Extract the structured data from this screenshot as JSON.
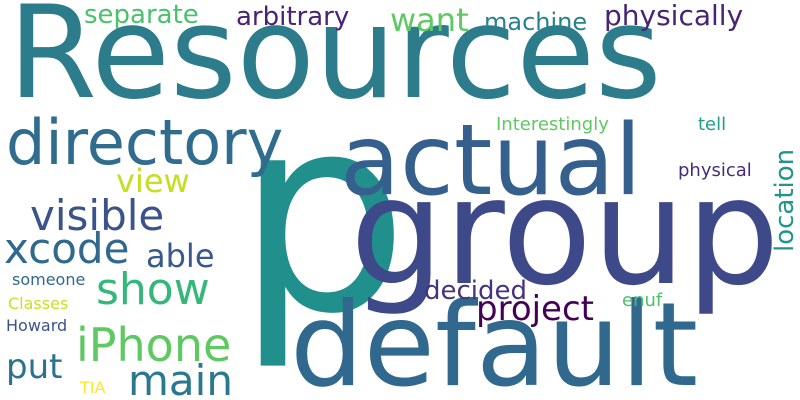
{
  "words": [
    {
      "text": "Resources",
      "color": "#2c7c8c"
    },
    {
      "text": "p",
      "color": "#21908d"
    },
    {
      "text": "group",
      "color": "#3e4989"
    },
    {
      "text": "default",
      "color": "#31688e"
    },
    {
      "text": "actual",
      "color": "#355f8d"
    },
    {
      "text": "directory",
      "color": "#2f6c8e"
    },
    {
      "text": "visible",
      "color": "#3b528b"
    },
    {
      "text": "xcode",
      "color": "#31688e"
    },
    {
      "text": "iPhone",
      "color": "#5ec962"
    },
    {
      "text": "show",
      "color": "#35b779"
    },
    {
      "text": "main",
      "color": "#2a788e"
    },
    {
      "text": "project",
      "color": "#440154"
    },
    {
      "text": "decided",
      "color": "#46337e"
    },
    {
      "text": "able",
      "color": "#38598c"
    },
    {
      "text": "view",
      "color": "#c2df23"
    },
    {
      "text": "put",
      "color": "#2c718e"
    },
    {
      "text": "separate",
      "color": "#4ac16d"
    },
    {
      "text": "arbitrary",
      "color": "#482374"
    },
    {
      "text": "want",
      "color": "#5ec962"
    },
    {
      "text": "machine",
      "color": "#26828e"
    },
    {
      "text": "physically",
      "color": "#482475"
    },
    {
      "text": "Interestingly",
      "color": "#5ec962"
    },
    {
      "text": "tell",
      "color": "#1f9e89"
    },
    {
      "text": "physical",
      "color": "#472c7a"
    },
    {
      "text": "location",
      "color": "#1f958b"
    },
    {
      "text": "enuf",
      "color": "#4ac16d"
    },
    {
      "text": "someone",
      "color": "#31688e"
    },
    {
      "text": "Classes",
      "color": "#c8e020"
    },
    {
      "text": "Howard",
      "color": "#3b528b"
    },
    {
      "text": "TIA",
      "color": "#fde725"
    }
  ]
}
